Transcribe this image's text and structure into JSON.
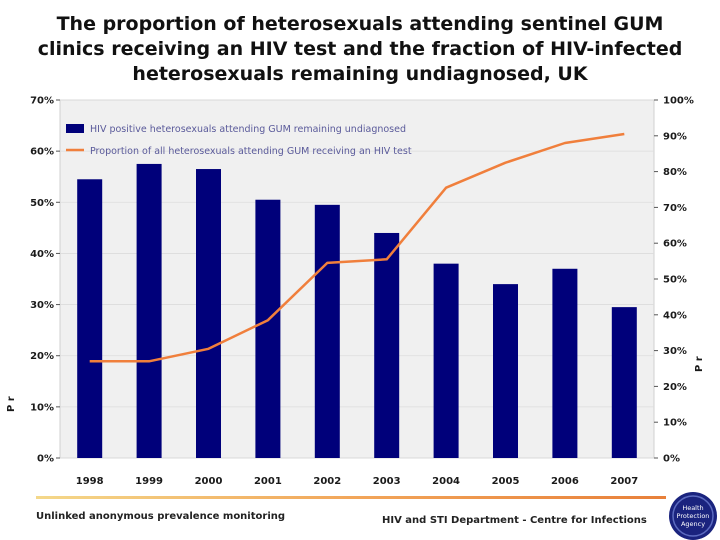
{
  "title": {
    "line1": "The proportion of heterosexuals attending sentinel GUM",
    "line2": "clinics receiving an HIV test and the fraction of HIV-infected",
    "line3": "heterosexuals remaining undiagnosed, UK"
  },
  "chart_data": {
    "type": "bar+line",
    "categories": [
      "1998",
      "1999",
      "2000",
      "2001",
      "2002",
      "2003",
      "2004",
      "2005",
      "2006",
      "2007"
    ],
    "series": [
      {
        "name": "HIV positive heterosexuals attending GUM remaining undiagnosed",
        "kind": "bar",
        "axis": "left",
        "color": "#00007a",
        "values": [
          54.5,
          57.5,
          56.5,
          50.5,
          49.5,
          44,
          38,
          34,
          37,
          29.5
        ]
      },
      {
        "name": "Proportion of all heterosexuals attending GUM receiving an HIV test",
        "kind": "line",
        "axis": "right",
        "color": "#f07f3c",
        "values": [
          27,
          27,
          30.5,
          38.5,
          54.5,
          55.5,
          75.5,
          82.5,
          88,
          90.5
        ]
      }
    ],
    "left_axis": {
      "ticks": [
        "0%",
        "10%",
        "20%",
        "30%",
        "40%",
        "50%",
        "60%",
        "70%"
      ],
      "range": [
        0,
        70
      ],
      "label": "P r"
    },
    "right_axis": {
      "ticks": [
        "0%",
        "10%",
        "20%",
        "30%",
        "40%",
        "50%",
        "60%",
        "70%",
        "80%",
        "90%",
        "100%"
      ],
      "range": [
        0,
        100
      ],
      "label": "P r"
    },
    "legend_position": "top-left"
  },
  "footer": {
    "left": "Unlinked anonymous prevalence monitoring",
    "right": "HIV and STI Department - Centre for Infections",
    "logo_line1": "Health",
    "logo_line2": "Protection",
    "logo_line3": "Agency"
  }
}
